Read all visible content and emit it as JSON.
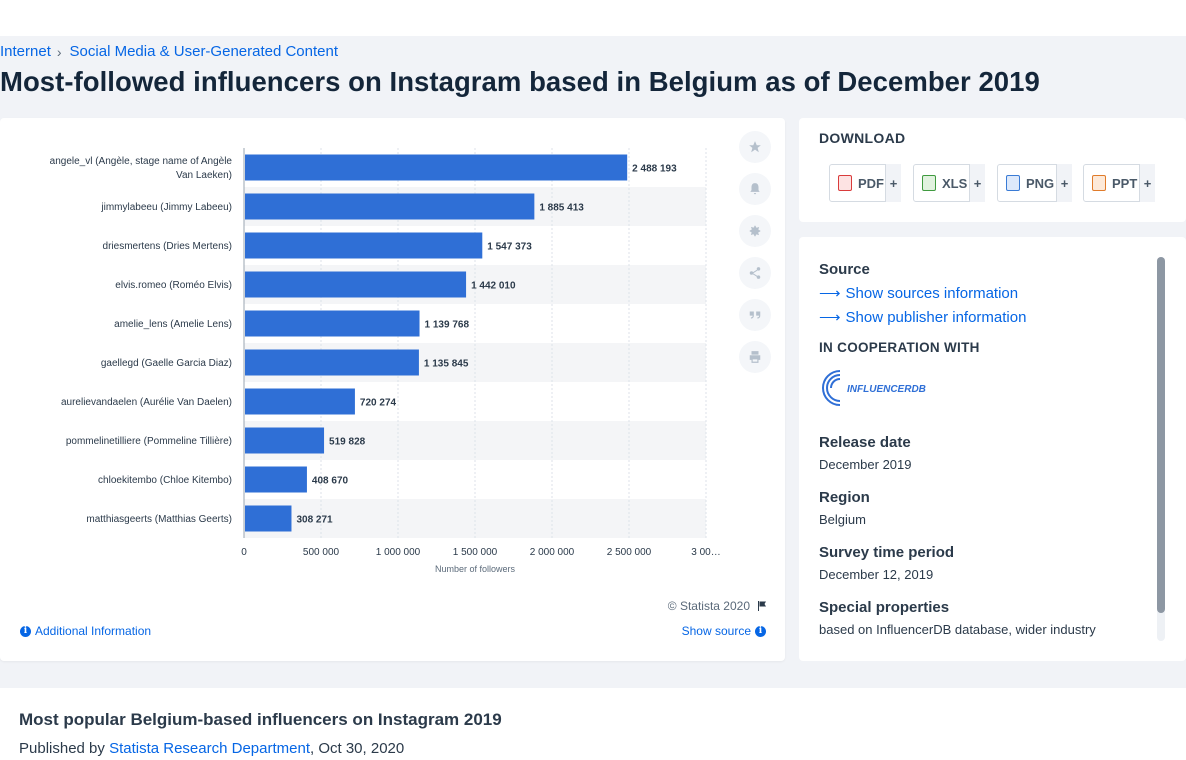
{
  "breadcrumb": {
    "items": [
      "Internet",
      "Social Media & User-Generated Content"
    ],
    "separator": "›"
  },
  "page_title": "Most-followed influencers on Instagram based in Belgium as of December 2019",
  "chart": {
    "copyright": "© Statista 2020",
    "additional_info": "Additional Information",
    "show_source": "Show source"
  },
  "chart_data": {
    "type": "bar",
    "orientation": "horizontal",
    "categories": [
      "angele_vl (Angèle, stage name of Angèle Van Laeken)",
      "jimmylabeeu (Jimmy Labeeu)",
      "driesmertens (Dries Mertens)",
      "elvis.romeo (Roméo Elvis)",
      "amelie_lens (Amelie Lens)",
      "gaellegd (Gaelle Garcia Diaz)",
      "aurelievandaelen (Aurélie Van Daelen)",
      "pommelinetilliere (Pommeline Tillière)",
      "chloekitembo (Chloe Kitembo)",
      "matthiasgeerts (Matthias Geerts)"
    ],
    "category_lines": [
      [
        "angele_vl (Angèle, stage name of Angèle",
        "Van Laeken)"
      ],
      [
        "jimmylabeeu (Jimmy Labeeu)"
      ],
      [
        "driesmertens (Dries Mertens)"
      ],
      [
        "elvis.romeo (Roméo Elvis)"
      ],
      [
        "amelie_lens (Amelie Lens)"
      ],
      [
        "gaellegd (Gaelle Garcia Diaz)"
      ],
      [
        "aurelievandaelen (Aurélie Van Daelen)"
      ],
      [
        "pommelinetilliere (Pommeline Tillière)"
      ],
      [
        "chloekitembo (Chloe Kitembo)"
      ],
      [
        "matthiasgeerts (Matthias Geerts)"
      ]
    ],
    "values": [
      2488193,
      1885413,
      1547373,
      1442010,
      1139768,
      1135845,
      720274,
      519828,
      408670,
      308271
    ],
    "value_labels": [
      "2 488 193",
      "1 885 413",
      "1 547 373",
      "1 442 010",
      "1 139 768",
      "1 135 845",
      "720 274",
      "519 828",
      "408 670",
      "308 271"
    ],
    "x_ticks": [
      0,
      500000,
      1000000,
      1500000,
      2000000,
      2500000,
      3000000
    ],
    "x_tick_labels": [
      "0",
      "500 000",
      "1 000 000",
      "1 500 000",
      "2 000 000",
      "2 500 000",
      "3 00…"
    ],
    "xlabel": "Number of followers",
    "xlim": [
      0,
      3000000
    ],
    "grid": true,
    "bar_color": "#2f6fd6"
  },
  "tools": [
    {
      "name": "favorite",
      "icon": "star-icon"
    },
    {
      "name": "notify",
      "icon": "bell-icon"
    },
    {
      "name": "settings",
      "icon": "gear-icon"
    },
    {
      "name": "share",
      "icon": "share-icon"
    },
    {
      "name": "cite",
      "icon": "quote-icon"
    },
    {
      "name": "print",
      "icon": "print-icon"
    }
  ],
  "download": {
    "title": "DOWNLOAD",
    "buttons": [
      {
        "label": "PDF",
        "icon": "pdf-icon",
        "color": "#d93b3b"
      },
      {
        "label": "XLS",
        "icon": "xls-icon",
        "color": "#3f9a3f"
      },
      {
        "label": "PNG",
        "icon": "png-icon",
        "color": "#3a7bd5"
      },
      {
        "label": "PPT",
        "icon": "ppt-icon",
        "color": "#e07b2a"
      }
    ],
    "plus": "+"
  },
  "details": {
    "source_label": "Source",
    "show_sources": "Show sources information",
    "show_publisher": "Show publisher information",
    "cooperation_label": "IN COOPERATION WITH",
    "cooperation_partner": "INFLUENCERDB",
    "release_date_label": "Release date",
    "release_date": "December 2019",
    "region_label": "Region",
    "region": "Belgium",
    "survey_period_label": "Survey time period",
    "survey_period": "December 12, 2019",
    "special_label": "Special properties",
    "special": "based on InfluencerDB database, wider industry"
  },
  "bottom": {
    "title": "Most popular Belgium-based influencers on Instagram 2019",
    "published_prefix": "Published by ",
    "publisher": "Statista Research Department",
    "date": ", Oct 30, 2020"
  },
  "colors": {
    "accent": "#0666e5",
    "bar": "#2f6fd6"
  }
}
